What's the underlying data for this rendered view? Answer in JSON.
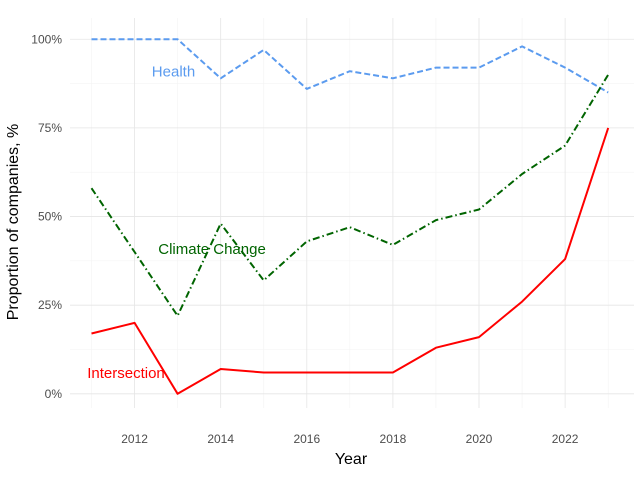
{
  "chart_data": {
    "type": "line",
    "xlabel": "Year",
    "ylabel": "Proportion of companies, %",
    "xlim": [
      2010.5,
      2023.6
    ],
    "ylim": [
      -0.04,
      1.06
    ],
    "x_ticks": [
      2012,
      2014,
      2016,
      2018,
      2020,
      2022
    ],
    "x_tick_labels": [
      "2012",
      "2014",
      "2016",
      "2018",
      "2020",
      "2022"
    ],
    "y_ticks": [
      0,
      0.25,
      0.5,
      0.75,
      1.0
    ],
    "y_tick_labels": [
      "0%",
      "25%",
      "50%",
      "75%",
      "100%"
    ],
    "grid": true,
    "x": [
      2011,
      2012,
      2013,
      2014,
      2015,
      2016,
      2017,
      2018,
      2019,
      2020,
      2021,
      2022,
      2023
    ],
    "series": [
      {
        "name": "Health",
        "color": "#5b9bef",
        "dash": "dashed",
        "values": [
          1.0,
          1.0,
          1.0,
          0.89,
          0.97,
          0.86,
          0.91,
          0.89,
          0.92,
          0.92,
          0.98,
          0.92,
          0.85
        ],
        "label_at": [
          2012.4,
          0.895
        ]
      },
      {
        "name": "Climate Change",
        "color": "#006400",
        "dash": "dashdot",
        "values": [
          0.58,
          0.4,
          0.22,
          0.48,
          0.32,
          0.43,
          0.47,
          0.42,
          0.49,
          0.52,
          0.62,
          0.7,
          0.9
        ],
        "label_at": [
          2012.55,
          0.395
        ]
      },
      {
        "name": "Intersection",
        "color": "#ff0000",
        "dash": "solid",
        "values": [
          0.17,
          0.2,
          0.0,
          0.07,
          0.06,
          0.06,
          0.06,
          0.06,
          0.13,
          0.16,
          0.26,
          0.38,
          0.75
        ],
        "label_at": [
          2010.9,
          0.045
        ]
      }
    ]
  }
}
